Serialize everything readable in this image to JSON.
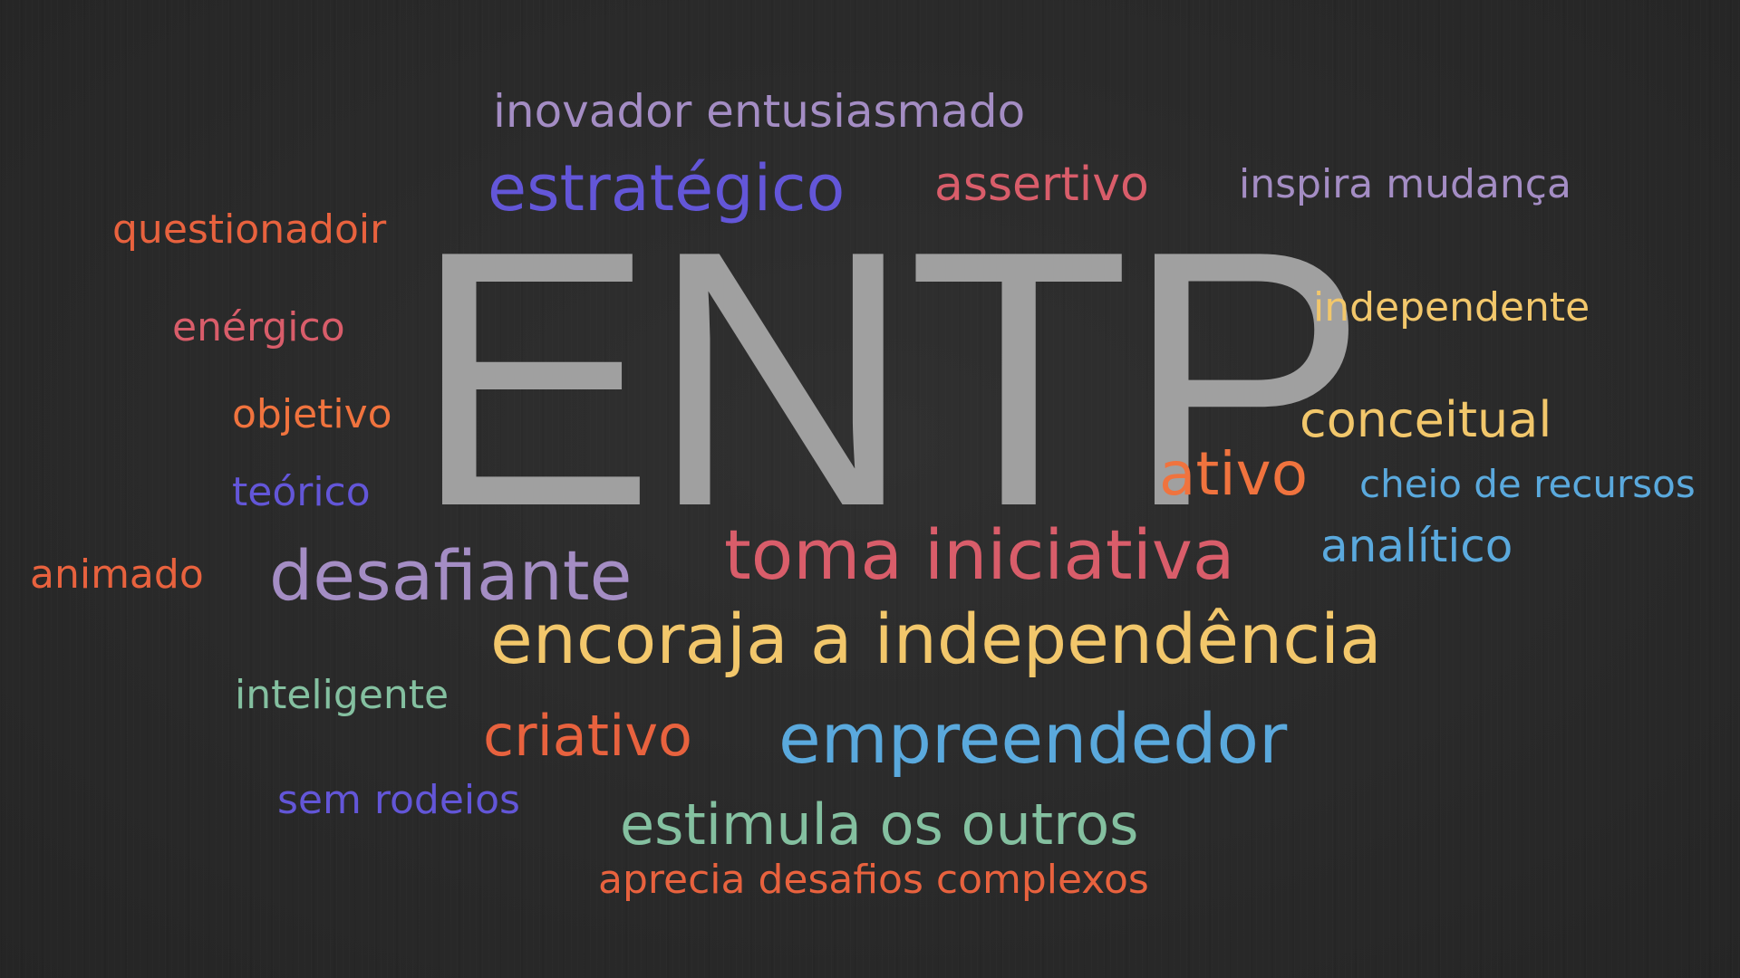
{
  "cloud": {
    "center": {
      "text": "ENTP",
      "color": "#a0a0a0"
    },
    "words": [
      {
        "text": "inovador entusiasmado",
        "color": "#a48dc4"
      },
      {
        "text": "estratégico",
        "color": "#6356d8"
      },
      {
        "text": "assertivo",
        "color": "#d95d6a"
      },
      {
        "text": "inspira mudança",
        "color": "#a48dc4"
      },
      {
        "text": "questionadoir",
        "color": "#e8623e"
      },
      {
        "text": "independente",
        "color": "#f2c76b"
      },
      {
        "text": "enérgico",
        "color": "#d95d6a"
      },
      {
        "text": "conceitual",
        "color": "#f2c76b"
      },
      {
        "text": "objetivo",
        "color": "#f0733e"
      },
      {
        "text": "ativo",
        "color": "#f0733e"
      },
      {
        "text": "cheio de recursos",
        "color": "#5aa9dd"
      },
      {
        "text": "teórico",
        "color": "#6356d8"
      },
      {
        "text": "analítico",
        "color": "#5aa9dd"
      },
      {
        "text": "toma iniciativa",
        "color": "#d95d6a"
      },
      {
        "text": "animado",
        "color": "#e8623e"
      },
      {
        "text": "desafiante",
        "color": "#a48dc4"
      },
      {
        "text": "encoraja a independência",
        "color": "#f2c76b"
      },
      {
        "text": "inteligente",
        "color": "#84c0a0"
      },
      {
        "text": "criativo",
        "color": "#e8623e"
      },
      {
        "text": "empreendedor",
        "color": "#5aa9dd"
      },
      {
        "text": "sem rodeios",
        "color": "#6356d8"
      },
      {
        "text": "estimula os outros",
        "color": "#84c0a0"
      },
      {
        "text": "aprecia desafios complexos",
        "color": "#e8623e"
      }
    ]
  }
}
